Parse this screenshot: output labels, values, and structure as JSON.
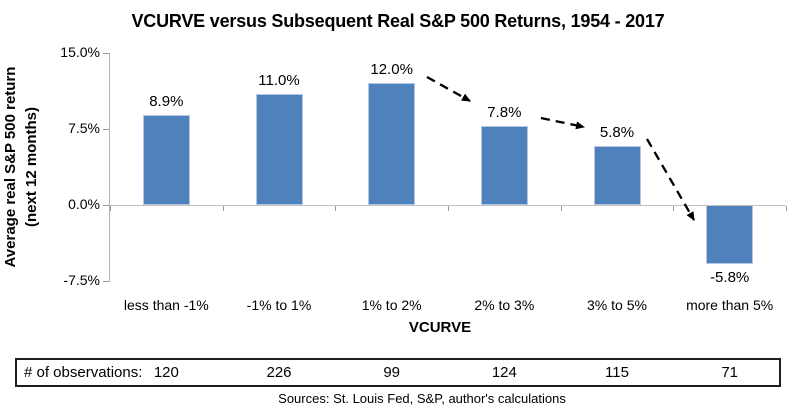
{
  "title": "VCURVE versus Subsequent Real S&P 500 Returns, 1954 - 2017",
  "y_axis": {
    "title_line1": "Average real S&P 500 return",
    "title_line2": "(next 12 months)",
    "ticks": [
      {
        "value": 15,
        "label": "15.0%"
      },
      {
        "value": 7.5,
        "label": "7.5%"
      },
      {
        "value": 0,
        "label": "0.0%"
      },
      {
        "value": -7.5,
        "label": "-7.5%"
      }
    ]
  },
  "x_axis": {
    "title": "VCURVE"
  },
  "chart_data": {
    "type": "bar",
    "title": "VCURVE versus Subsequent Real S&P 500 Returns, 1954 - 2017",
    "xlabel": "VCURVE",
    "ylabel": "Average real S&P 500 return (next 12 months)",
    "ylim": [
      -7.5,
      15
    ],
    "y_tick_labels": [
      "15.0%",
      "7.5%",
      "0.0%",
      "-7.5%"
    ],
    "categories": [
      "less than -1%",
      "-1% to 1%",
      "1% to 2%",
      "2% to 3%",
      "3% to 5%",
      "more than 5%"
    ],
    "values": [
      8.9,
      11.0,
      12.0,
      7.8,
      5.8,
      -5.8
    ],
    "value_labels": [
      "8.9%",
      "11.0%",
      "12.0%",
      "7.8%",
      "5.8%",
      "-5.8%"
    ],
    "bar_color": "#4F81BD",
    "grid": false,
    "legend": false,
    "annotation": "three dashed black arrows showing decline from the 12.0% peak down to the -5.8% bar"
  },
  "observations": {
    "label": "# of observations:",
    "values": [
      "120",
      "226",
      "99",
      "124",
      "115",
      "71"
    ]
  },
  "footer": "Sources: St. Louis Fed, S&P, author's calculations"
}
